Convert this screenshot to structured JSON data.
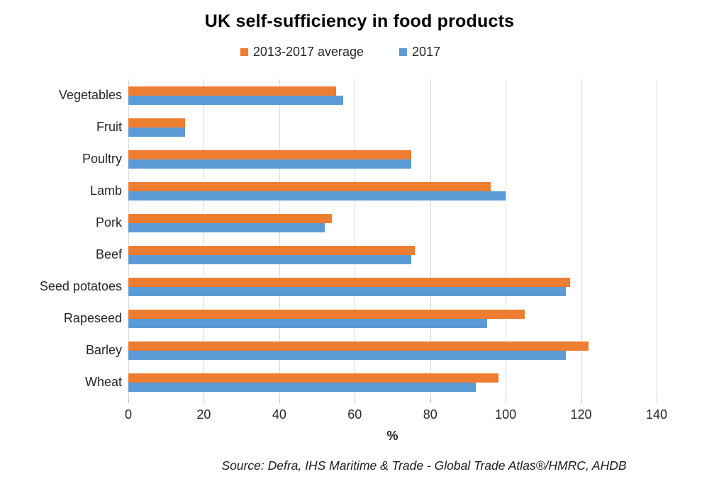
{
  "chart_data": {
    "type": "bar",
    "orientation": "horizontal",
    "title": "UK self-sufficiency in food products",
    "categories": [
      "Vegetables",
      "Fruit",
      "Poultry",
      "Lamb",
      "Pork",
      "Beef",
      "Seed potatoes",
      "Rapeseed",
      "Barley",
      "Wheat"
    ],
    "series": [
      {
        "name": "2013-2017 average",
        "color": "#ED7D31",
        "values": [
          55,
          15,
          75,
          96,
          54,
          76,
          117,
          105,
          122,
          98
        ]
      },
      {
        "name": "2017",
        "color": "#5B9BD5",
        "values": [
          57,
          15,
          75,
          100,
          52,
          75,
          116,
          95,
          116,
          92
        ]
      }
    ],
    "xlabel": "%",
    "xlim": [
      0,
      140
    ],
    "xticks": [
      0,
      20,
      40,
      60,
      80,
      100,
      120,
      140
    ],
    "grid": "vertical",
    "legend_position": "top",
    "gridline_color": "#D9D9D9",
    "tick_color": "#BFBFBF"
  },
  "source_note": "Source: Defra, IHS Maritime & Trade - Global Trade Atlas®/HMRC, AHDB"
}
